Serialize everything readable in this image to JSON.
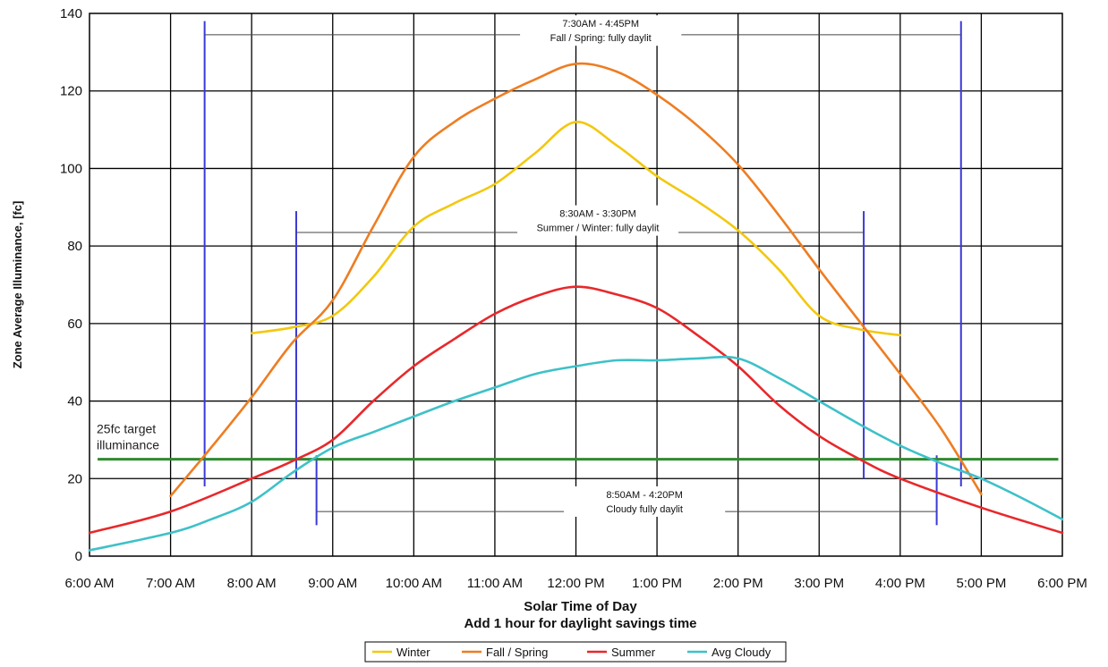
{
  "chart_data": {
    "type": "line",
    "title": "",
    "xlabel": "Solar Time of Day",
    "xlabel2": "Add 1 hour for daylight savings time",
    "ylabel": "Zone Average Illuminance, [fc]",
    "ylim": [
      0,
      140
    ],
    "yticks": [
      0,
      20,
      40,
      60,
      80,
      100,
      120,
      140
    ],
    "xlim": [
      6,
      18
    ],
    "xticks": [
      {
        "value": 6,
        "label": "6:00 AM"
      },
      {
        "value": 7,
        "label": "7:00 AM"
      },
      {
        "value": 8,
        "label": "8:00 AM"
      },
      {
        "value": 9,
        "label": "9:00 AM"
      },
      {
        "value": 10,
        "label": "10:00 AM"
      },
      {
        "value": 11,
        "label": "11:00 AM"
      },
      {
        "value": 12,
        "label": "12:00 PM"
      },
      {
        "value": 13,
        "label": "1:00 PM"
      },
      {
        "value": 14,
        "label": "2:00 PM"
      },
      {
        "value": 15,
        "label": "3:00 PM"
      },
      {
        "value": 16,
        "label": "4:00 PM"
      },
      {
        "value": 17,
        "label": "5:00 PM"
      },
      {
        "value": 18,
        "label": "6:00 PM"
      }
    ],
    "grid": true,
    "legend": "bottom",
    "series": [
      {
        "name": "Winter",
        "color": "#f2c80f",
        "points": [
          [
            8,
            57.5
          ],
          [
            8.5,
            59
          ],
          [
            9,
            62
          ],
          [
            9.5,
            72
          ],
          [
            10,
            85
          ],
          [
            10.5,
            91
          ],
          [
            11,
            96
          ],
          [
            11.5,
            104
          ],
          [
            12,
            112
          ],
          [
            12.5,
            106
          ],
          [
            13,
            98
          ],
          [
            13.5,
            91.5
          ],
          [
            14,
            84
          ],
          [
            14.5,
            74
          ],
          [
            15,
            62
          ],
          [
            15.5,
            58.5
          ],
          [
            16,
            57
          ]
        ]
      },
      {
        "name": "Fall / Spring",
        "color": "#ee7d22",
        "points": [
          [
            7,
            15.5
          ],
          [
            7.5,
            28
          ],
          [
            8,
            41
          ],
          [
            8.5,
            55
          ],
          [
            9,
            66
          ],
          [
            9.5,
            85
          ],
          [
            10,
            103
          ],
          [
            10.5,
            112
          ],
          [
            11,
            118
          ],
          [
            11.5,
            123
          ],
          [
            12,
            127
          ],
          [
            12.5,
            125
          ],
          [
            13,
            119
          ],
          [
            13.5,
            111
          ],
          [
            14,
            101
          ],
          [
            14.5,
            88
          ],
          [
            15,
            74
          ],
          [
            15.5,
            60.5
          ],
          [
            16,
            47
          ],
          [
            16.5,
            33
          ],
          [
            17,
            16
          ]
        ]
      },
      {
        "name": "Summer",
        "color": "#e8282b",
        "points": [
          [
            6,
            6
          ],
          [
            7,
            11.5
          ],
          [
            8,
            20
          ],
          [
            8.5,
            24.5
          ],
          [
            9,
            30
          ],
          [
            9.5,
            40
          ],
          [
            10,
            49
          ],
          [
            10.5,
            56
          ],
          [
            11,
            62.5
          ],
          [
            11.5,
            67
          ],
          [
            12,
            69.5
          ],
          [
            12.5,
            67.5
          ],
          [
            13,
            64
          ],
          [
            13.5,
            57
          ],
          [
            14,
            49
          ],
          [
            14.5,
            39
          ],
          [
            15,
            31
          ],
          [
            15.5,
            25
          ],
          [
            16,
            20
          ],
          [
            17,
            12.5
          ],
          [
            18,
            6
          ]
        ]
      },
      {
        "name": "Avg Cloudy",
        "color": "#3ec1c8",
        "points": [
          [
            6,
            1.5
          ],
          [
            7,
            6
          ],
          [
            7.5,
            9.5
          ],
          [
            8,
            14
          ],
          [
            8.5,
            21.5
          ],
          [
            9,
            28
          ],
          [
            9.5,
            32
          ],
          [
            10,
            36
          ],
          [
            10.5,
            40
          ],
          [
            11,
            43.5
          ],
          [
            11.5,
            47
          ],
          [
            12,
            49
          ],
          [
            12.5,
            50.5
          ],
          [
            13,
            50.5
          ],
          [
            13.5,
            51
          ],
          [
            14,
            51
          ],
          [
            14.5,
            46
          ],
          [
            15,
            40
          ],
          [
            15.5,
            34
          ],
          [
            16,
            28.5
          ],
          [
            16.5,
            24
          ],
          [
            17,
            20
          ],
          [
            17.5,
            15
          ],
          [
            18,
            9.5
          ]
        ]
      }
    ],
    "target": {
      "value": 25,
      "color": "#2e8b2e",
      "label_line1": "25fc target",
      "label_line2": "illuminance"
    },
    "ranges": [
      {
        "id": "fall-spring",
        "time_text": "7:30AM - 4:45PM",
        "desc_text": "Fall / Spring: fully daylit",
        "x_start": 7.42,
        "x_end": 16.75,
        "bar_low": 18,
        "bar_high": 138,
        "bracket_y": 134.5,
        "text_y": 136.5
      },
      {
        "id": "summer-winter",
        "time_text": "8:30AM - 3:30PM",
        "desc_text": "Summer / Winter: fully daylit",
        "x_start": 8.55,
        "x_end": 15.55,
        "bar_low": 20,
        "bar_high": 89,
        "bracket_y": 83.5,
        "text_y": 87.5
      },
      {
        "id": "cloudy",
        "time_text": "8:50AM - 4:20PM",
        "desc_text": "Cloudy fully daylit",
        "x_start": 8.8,
        "x_end": 16.45,
        "bar_low": 8,
        "bar_high": 26,
        "bracket_y": 11.5,
        "text_y": 15
      }
    ],
    "range_line_color": "#3a3ad6"
  }
}
